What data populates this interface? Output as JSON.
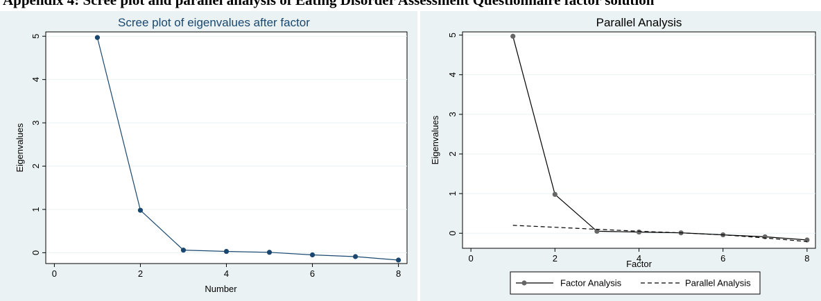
{
  "page": {
    "heading": "Appendix 4: Scree plot and parallel analysis of Eating Disorder Assessment Questionnaire factor solution"
  },
  "chart_data": [
    {
      "type": "line",
      "title": "Scree plot of eigenvalues after factor",
      "xlabel": "Number",
      "ylabel": "Eigenvalues",
      "xlim": [
        -0.2,
        8.2
      ],
      "ylim": [
        -0.25,
        5.1
      ],
      "xticks": [
        0,
        2,
        4,
        6,
        8
      ],
      "yticks": [
        0,
        1,
        2,
        3,
        4,
        5
      ],
      "grid": true,
      "colors": {
        "line": "#1a476f",
        "marker": "#1a476f",
        "plot_bg": "#ffffff",
        "outer_bg": "#eaf2f3",
        "grid": "#eaf2f3"
      },
      "series": [
        {
          "x": [
            1,
            2,
            3,
            4,
            5,
            6,
            7,
            8
          ],
          "values": [
            4.97,
            0.98,
            0.06,
            0.03,
            0.01,
            -0.05,
            -0.09,
            -0.17
          ]
        }
      ]
    },
    {
      "type": "line",
      "title": "Parallel Analysis",
      "xlabel": "Factor",
      "ylabel": "Eigenvalues",
      "xlim": [
        -0.2,
        8.2
      ],
      "ylim": [
        -0.38,
        5.08
      ],
      "xticks": [
        0,
        2,
        4,
        6,
        8
      ],
      "yticks": [
        0,
        1,
        2,
        3,
        4,
        5
      ],
      "grid": true,
      "legend": "bottom",
      "colors": {
        "line": "#000000",
        "marker": "#666666",
        "plot_bg": "#ffffff",
        "outer_bg": "#eaf2f3",
        "grid": "#eaf2f3"
      },
      "series": [
        {
          "name": "Factor Analysis",
          "style": "solid",
          "x": [
            1,
            2,
            3,
            4,
            5,
            6,
            7,
            8
          ],
          "values": [
            4.97,
            0.98,
            0.05,
            0.03,
            0.01,
            -0.04,
            -0.09,
            -0.17
          ]
        },
        {
          "name": "Parallel Analysis",
          "style": "dashed",
          "x": [
            1,
            2,
            3,
            4,
            5,
            6,
            7,
            8
          ],
          "values": [
            0.2,
            0.15,
            0.1,
            0.05,
            0.01,
            -0.04,
            -0.12,
            -0.21
          ]
        }
      ]
    }
  ]
}
